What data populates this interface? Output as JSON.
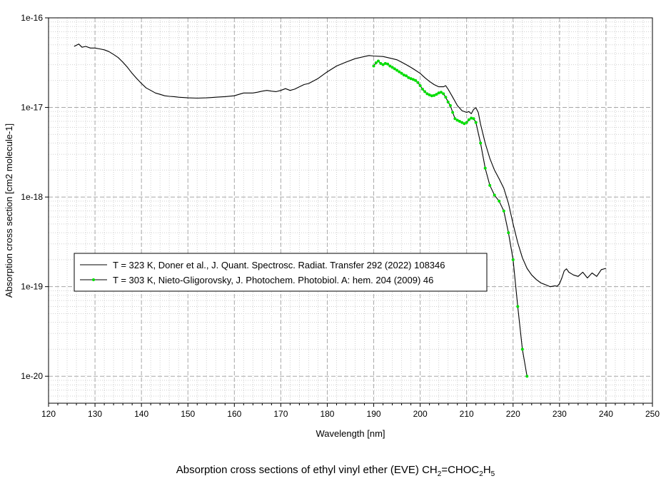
{
  "chart_data": {
    "type": "line",
    "title": "",
    "xlabel": "Wavelength [nm]",
    "ylabel": "Absorption cross section [cm2   molecule-1]",
    "xlim": [
      120,
      250
    ],
    "ylim": [
      5e-21,
      1e-16
    ],
    "yscale": "log",
    "grid": true,
    "legend_position": "middle-left",
    "x_ticks": [
      {
        "value": 120,
        "label": "120"
      },
      {
        "value": 130,
        "label": "130"
      },
      {
        "value": 140,
        "label": "140"
      },
      {
        "value": 150,
        "label": "150"
      },
      {
        "value": 160,
        "label": "160"
      },
      {
        "value": 170,
        "label": "170"
      },
      {
        "value": 180,
        "label": "180"
      },
      {
        "value": 190,
        "label": "190"
      },
      {
        "value": 200,
        "label": "200"
      },
      {
        "value": 210,
        "label": "210"
      },
      {
        "value": 220,
        "label": "220"
      },
      {
        "value": 230,
        "label": "230"
      },
      {
        "value": 240,
        "label": "240"
      },
      {
        "value": 250,
        "label": "250"
      }
    ],
    "y_ticks": [
      {
        "value": 1e-16,
        "label": "1e-16"
      },
      {
        "value": 1e-17,
        "label": "1e-17"
      },
      {
        "value": 1e-18,
        "label": "1e-18"
      },
      {
        "value": 1e-19,
        "label": "1e-19"
      },
      {
        "value": 1e-20,
        "label": "1e-20"
      }
    ],
    "series": [
      {
        "name": "T = 323 K, Doner et al., J. Quant. Spectrosc. Radiat. Transfer 292 (2022) 108346",
        "color": "#000000",
        "marker": "none",
        "x": [
          125.5,
          126.5,
          127.2,
          128,
          129,
          130,
          131,
          132,
          133,
          134,
          135,
          136,
          137,
          138,
          139,
          140,
          141,
          142,
          143,
          144,
          145,
          146,
          147,
          148,
          150,
          152,
          154,
          155,
          156,
          158,
          160,
          161,
          162,
          164,
          165,
          166,
          167,
          168,
          169,
          170,
          171,
          172,
          173,
          174,
          175,
          176,
          178,
          180,
          182,
          184,
          186,
          188,
          189,
          190,
          192,
          193,
          194,
          195,
          196,
          197,
          198,
          199,
          200,
          201,
          202,
          203,
          204,
          205,
          205.5,
          206,
          207,
          208,
          209,
          210,
          210.5,
          211,
          211.5,
          212,
          212.5,
          213,
          214,
          215,
          216,
          217,
          218,
          219,
          220,
          221,
          222,
          223,
          224,
          225,
          226,
          227,
          228,
          229,
          229.5,
          230,
          230.5,
          231,
          231.5,
          232,
          233,
          234,
          235,
          236,
          237,
          238,
          239,
          240
        ],
        "y": [
          4.8e-17,
          5.1e-17,
          4.7e-17,
          4.8e-17,
          4.6e-17,
          4.6e-17,
          4.5e-17,
          4.4e-17,
          4.2e-17,
          3.9e-17,
          3.6e-17,
          3.2e-17,
          2.8e-17,
          2.4e-17,
          2.1e-17,
          1.85e-17,
          1.65e-17,
          1.55e-17,
          1.45e-17,
          1.4e-17,
          1.35e-17,
          1.33e-17,
          1.32e-17,
          1.3e-17,
          1.28e-17,
          1.27e-17,
          1.28e-17,
          1.29e-17,
          1.3e-17,
          1.32e-17,
          1.35e-17,
          1.4e-17,
          1.45e-17,
          1.45e-17,
          1.48e-17,
          1.52e-17,
          1.55e-17,
          1.52e-17,
          1.5e-17,
          1.55e-17,
          1.62e-17,
          1.55e-17,
          1.6e-17,
          1.7e-17,
          1.8e-17,
          1.85e-17,
          2.1e-17,
          2.5e-17,
          2.9e-17,
          3.2e-17,
          3.5e-17,
          3.7e-17,
          3.8e-17,
          3.75e-17,
          3.7e-17,
          3.6e-17,
          3.5e-17,
          3.4e-17,
          3.2e-17,
          3e-17,
          2.8e-17,
          2.6e-17,
          2.4e-17,
          2.15e-17,
          1.95e-17,
          1.8e-17,
          1.7e-17,
          1.7e-17,
          1.75e-17,
          1.6e-17,
          1.3e-17,
          1.05e-17,
          9.2e-18,
          8.8e-18,
          9e-18,
          8.5e-18,
          9.5e-18,
          9.9e-18,
          8.8e-18,
          6.5e-18,
          4e-18,
          2.7e-18,
          2e-18,
          1.6e-18,
          1.25e-18,
          8.5e-19,
          5e-19,
          3.1e-19,
          2.1e-19,
          1.6e-19,
          1.35e-19,
          1.2e-19,
          1.1e-19,
          1.05e-19,
          1e-19,
          1.02e-19,
          1.01e-19,
          1.08e-19,
          1.25e-19,
          1.5e-19,
          1.58e-19,
          1.45e-19,
          1.35e-19,
          1.3e-19,
          1.45e-19,
          1.25e-19,
          1.42e-19,
          1.3e-19,
          1.55e-19,
          1.6e-19
        ]
      },
      {
        "name": "T = 303 K, Nieto-Gligorovsky, J. Photochem. Photobiol. A: hem. 204 (2009) 46",
        "color": "#000000",
        "marker_color": "#00dd00",
        "marker": "circle",
        "x": [
          190,
          190.5,
          191,
          191.5,
          192,
          192.5,
          193,
          193.5,
          194,
          194.5,
          195,
          195.5,
          196,
          196.5,
          197,
          197.5,
          198,
          198.5,
          199,
          199.5,
          200,
          200.5,
          201,
          201.5,
          202,
          202.5,
          203,
          203.5,
          204,
          204.5,
          205,
          205.5,
          206,
          206.5,
          207,
          207.5,
          208,
          208.5,
          209,
          209.5,
          210,
          210.5,
          211,
          211.5,
          212,
          213,
          214,
          215,
          216,
          217,
          218,
          219,
          220,
          221,
          222,
          223
        ],
        "y": [
          2.9e-17,
          3.15e-17,
          3.3e-17,
          3.1e-17,
          3e-17,
          3.1e-17,
          3.05e-17,
          2.9e-17,
          2.8e-17,
          2.7e-17,
          2.6e-17,
          2.5e-17,
          2.4e-17,
          2.3e-17,
          2.25e-17,
          2.15e-17,
          2.1e-17,
          2.05e-17,
          2e-17,
          1.9e-17,
          1.75e-17,
          1.6e-17,
          1.5e-17,
          1.42e-17,
          1.38e-17,
          1.35e-17,
          1.36e-17,
          1.4e-17,
          1.45e-17,
          1.48e-17,
          1.42e-17,
          1.3e-17,
          1.15e-17,
          1.05e-17,
          8.8e-18,
          7.5e-18,
          7.2e-18,
          7e-18,
          6.8e-18,
          6.6e-18,
          6.8e-18,
          7.3e-18,
          7.6e-18,
          7.5e-18,
          6.8e-18,
          4e-18,
          2.1e-18,
          1.35e-18,
          1.05e-18,
          9e-19,
          7e-19,
          4e-19,
          2e-19,
          6e-20,
          2e-20,
          1e-20
        ]
      }
    ]
  },
  "caption": {
    "prefix": "Absorption cross sections of ethyl vinyl ether (EVE) CH",
    "sub1": "2",
    "mid": "=CHOC",
    "sub2": "2",
    "mid2": "H",
    "sub3": "5"
  }
}
